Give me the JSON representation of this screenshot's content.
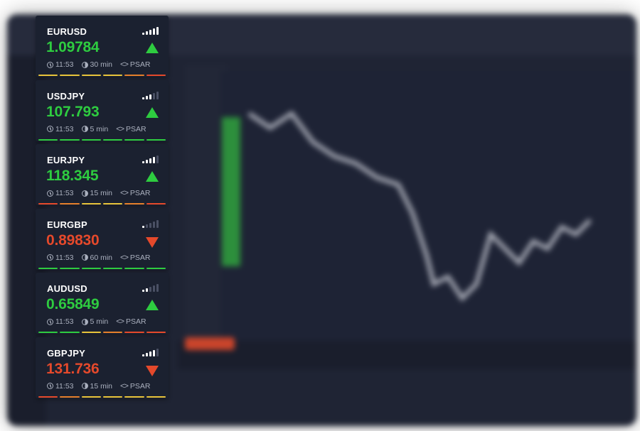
{
  "tickers": [
    {
      "symbol": "EURUSD",
      "price": "1.09784",
      "direction": "up",
      "signal": 5,
      "time": "11:53",
      "timeframe": "30 min",
      "indicator": "PSAR",
      "strip": [
        "#e8c33a",
        "#e8c33a",
        "#e8c33a",
        "#e8c33a",
        "#e57f2b",
        "#e5492b"
      ]
    },
    {
      "symbol": "USDJPY",
      "price": "107.793",
      "direction": "up",
      "signal": 3,
      "time": "11:53",
      "timeframe": "5 min",
      "indicator": "PSAR",
      "strip": [
        "#2ecc40",
        "#2ecc40",
        "#2ecc40",
        "#2ecc40",
        "#2ecc40",
        "#2ecc40"
      ]
    },
    {
      "symbol": "EURJPY",
      "price": "118.345",
      "direction": "up",
      "signal": 4,
      "time": "11:53",
      "timeframe": "15 min",
      "indicator": "PSAR",
      "strip": [
        "#e5492b",
        "#e57f2b",
        "#e8c33a",
        "#e8c33a",
        "#e57f2b",
        "#e5492b"
      ]
    },
    {
      "symbol": "EURGBP",
      "price": "0.89830",
      "direction": "down",
      "signal": 1,
      "time": "11:53",
      "timeframe": "60 min",
      "indicator": "PSAR",
      "strip": [
        "#2ecc40",
        "#2ecc40",
        "#2ecc40",
        "#2ecc40",
        "#2ecc40",
        "#2ecc40"
      ]
    },
    {
      "symbol": "AUDUSD",
      "price": "0.65849",
      "direction": "up",
      "signal": 2,
      "time": "11:53",
      "timeframe": "5 min",
      "indicator": "PSAR",
      "strip": [
        "#2ecc40",
        "#2ecc40",
        "#e8c33a",
        "#e57f2b",
        "#e5492b",
        "#e5492b"
      ]
    },
    {
      "symbol": "GBPJPY",
      "price": "131.736",
      "direction": "down",
      "signal": 4,
      "time": "11:53",
      "timeframe": "15 min",
      "indicator": "PSAR",
      "strip": [
        "#e5492b",
        "#e57f2b",
        "#e8c33a",
        "#e8c33a",
        "#e8c33a",
        "#e8c33a"
      ]
    }
  ],
  "icons": {
    "time": "clock-icon",
    "timeframe": "timer-icon",
    "indicator": "code-icon",
    "direction_up": "arrow-up-icon",
    "direction_down": "arrow-down-icon",
    "signal": "signal-strength-icon"
  },
  "colors": {
    "up": "#2ecc40",
    "down": "#e5492b",
    "card_bg": "#1b2130"
  }
}
